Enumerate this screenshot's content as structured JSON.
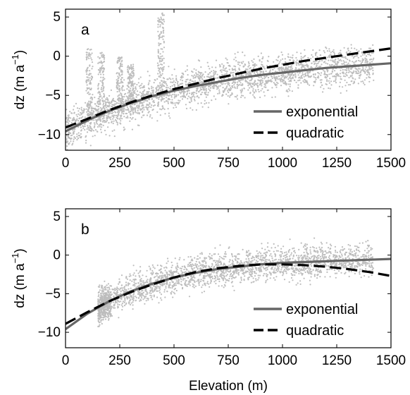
{
  "chart_data": [
    {
      "type": "scatter",
      "panel_label": "a",
      "xlim": [
        0,
        1500
      ],
      "ylim": [
        -12,
        6
      ],
      "xticks": [
        0,
        250,
        500,
        750,
        1000,
        1250,
        1500
      ],
      "yticks": [
        5,
        0,
        -5,
        -10
      ],
      "ylabel": "dz (m a",
      "ylabel_sup": "−1",
      "ylabel_close": ")",
      "xlabel": "",
      "scatter_color": "#bdbdbd",
      "series": [
        {
          "name": "exponential",
          "color": "#666666",
          "dash": "solid",
          "x": [
            0,
            100,
            200,
            300,
            400,
            500,
            600,
            700,
            800,
            900,
            1000,
            1100,
            1200,
            1300,
            1400,
            1500
          ],
          "y": [
            -9.6,
            -8.2,
            -7.0,
            -6.0,
            -5.1,
            -4.4,
            -3.8,
            -3.3,
            -2.8,
            -2.4,
            -2.1,
            -1.8,
            -1.5,
            -1.3,
            -1.1,
            -0.9
          ]
        },
        {
          "name": "quadratic",
          "color": "#000000",
          "dash": "dashed",
          "x": [
            0,
            100,
            200,
            300,
            400,
            500,
            600,
            700,
            800,
            900,
            1000,
            1100,
            1200,
            1300,
            1400,
            1500
          ],
          "y": [
            -9.1,
            -8.0,
            -6.9,
            -5.9,
            -5.0,
            -4.2,
            -3.5,
            -2.8,
            -2.2,
            -1.6,
            -1.1,
            -0.6,
            -0.2,
            0.2,
            0.6,
            1.0
          ]
        }
      ],
      "legend": {
        "placement": "bottom-right",
        "entries": [
          "exponential",
          "quadratic"
        ]
      }
    },
    {
      "type": "scatter",
      "panel_label": "b",
      "xlim": [
        0,
        1500
      ],
      "ylim": [
        -12,
        6
      ],
      "xticks": [
        0,
        250,
        500,
        750,
        1000,
        1250,
        1500
      ],
      "yticks": [
        5,
        0,
        -5,
        -10
      ],
      "ylabel": "dz (m a",
      "ylabel_sup": "−1",
      "ylabel_close": ")",
      "xlabel": "Elevation (m)",
      "scatter_color": "#bdbdbd",
      "series": [
        {
          "name": "exponential",
          "color": "#666666",
          "dash": "solid",
          "x": [
            0,
            100,
            200,
            300,
            400,
            500,
            600,
            700,
            800,
            900,
            1000,
            1100,
            1200,
            1300,
            1400,
            1500
          ],
          "y": [
            -9.6,
            -7.6,
            -6.0,
            -4.7,
            -3.7,
            -2.9,
            -2.3,
            -1.8,
            -1.5,
            -1.2,
            -1.0,
            -0.9,
            -0.8,
            -0.7,
            -0.6,
            -0.5
          ]
        },
        {
          "name": "quadratic",
          "color": "#000000",
          "dash": "dashed",
          "x": [
            0,
            100,
            200,
            300,
            400,
            500,
            600,
            700,
            800,
            900,
            1000,
            1100,
            1200,
            1300,
            1400,
            1500
          ],
          "y": [
            -8.9,
            -7.4,
            -6.0,
            -4.8,
            -3.8,
            -2.9,
            -2.2,
            -1.7,
            -1.4,
            -1.2,
            -1.2,
            -1.3,
            -1.5,
            -1.8,
            -2.2,
            -2.7
          ]
        }
      ],
      "legend": {
        "placement": "bottom-right",
        "entries": [
          "exponential",
          "quadratic"
        ]
      }
    }
  ]
}
